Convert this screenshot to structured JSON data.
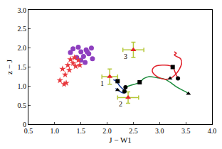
{
  "chart_data": {
    "type": "scatter",
    "x_label": "J − W1",
    "y_label": "z − J",
    "xlim": [
      0.5,
      4.0
    ],
    "ylim": [
      0,
      3.0
    ],
    "xticks": [
      0.5,
      {
        "value": 1,
        "label": "1.0"
      },
      1.5,
      {
        "value": 2,
        "label": "2.0"
      },
      2.5,
      {
        "value": 3,
        "label": "3.0"
      },
      3.5,
      {
        "value": 4,
        "label": "4.0"
      }
    ],
    "yticks": [
      0,
      0.5,
      {
        "value": 1,
        "label": "1.0"
      },
      1.5,
      {
        "value": 2,
        "label": "2.0"
      },
      2.5,
      {
        "value": 3,
        "label": "3.0"
      }
    ],
    "grid": false,
    "series": [
      {
        "type": "scatter",
        "marker": "circle",
        "color": "#8e3fbf",
        "x": [
          1.3,
          1.35,
          1.45,
          1.5,
          1.55,
          1.6,
          1.65,
          1.7,
          1.72,
          1.5,
          1.42,
          1.58,
          1.62
        ],
        "values": [
          1.88,
          1.98,
          2.02,
          1.9,
          1.78,
          1.95,
          1.85,
          2.0,
          1.72,
          1.68,
          1.75,
          1.62,
          1.9
        ]
      },
      {
        "type": "scatter",
        "marker": "star",
        "color": "#e8383d",
        "x": [
          1.1,
          1.15,
          1.18,
          1.2,
          1.25,
          1.28,
          1.3,
          1.35,
          1.38,
          1.4,
          1.45,
          1.48,
          1.22
        ],
        "values": [
          1.15,
          1.45,
          1.05,
          1.3,
          1.55,
          1.42,
          1.7,
          1.6,
          1.75,
          1.52,
          1.68,
          1.55,
          1.08
        ]
      },
      {
        "type": "scatter",
        "marker": "triangle",
        "color": "#e8202a",
        "error_color": "#b5c83a",
        "x": [
          2.05,
          2.4,
          2.5
        ],
        "values": [
          1.25,
          0.7,
          1.95
        ],
        "x_error": [
          0.15,
          0.2,
          0.2
        ],
        "y_error": [
          0.2,
          0.15,
          0.2
        ],
        "labels": [
          "1",
          "2",
          "3"
        ]
      },
      {
        "type": "line",
        "color": "#1f3f9f",
        "x": [
          2.12,
          2.18,
          2.22,
          2.27,
          2.32,
          2.36,
          2.3,
          2.22,
          2.16
        ],
        "values": [
          1.17,
          1.12,
          1.04,
          0.96,
          0.9,
          0.85,
          0.82,
          0.88,
          0.94
        ],
        "points": [
          {
            "x": 2.2,
            "y": 1.13,
            "marker": "square"
          },
          {
            "x": 2.33,
            "y": 0.86,
            "marker": "circle"
          },
          {
            "x": 2.2,
            "y": 0.9,
            "marker": "triangle"
          }
        ]
      },
      {
        "type": "line",
        "color": "#1a8a3a",
        "x": [
          2.35,
          2.45,
          2.55,
          2.62,
          2.7,
          2.8,
          2.95,
          3.1,
          3.2,
          3.3,
          3.4,
          3.5,
          3.55
        ],
        "values": [
          0.97,
          1.02,
          1.06,
          1.1,
          1.2,
          1.25,
          1.22,
          1.18,
          1.1,
          1.0,
          0.92,
          0.85,
          0.8
        ],
        "points": [
          {
            "x": 2.35,
            "y": 0.97,
            "marker": "circle"
          },
          {
            "x": 2.62,
            "y": 1.1,
            "marker": "square"
          },
          {
            "x": 3.55,
            "y": 0.8,
            "marker": "triangle"
          }
        ]
      },
      {
        "type": "line",
        "color": "#e0202a",
        "x": [
          3.35,
          3.3,
          3.25,
          3.1,
          2.92,
          2.86,
          2.95,
          3.1,
          3.2,
          3.3,
          3.38,
          3.42,
          3.4,
          3.32,
          3.28,
          3.32,
          3.28
        ],
        "values": [
          1.2,
          1.35,
          1.5,
          1.55,
          1.52,
          1.4,
          1.25,
          1.18,
          1.2,
          1.3,
          1.45,
          1.6,
          1.72,
          1.78,
          1.82,
          1.86,
          1.9
        ],
        "points": [
          {
            "x": 3.25,
            "y": 1.5,
            "marker": "square"
          },
          {
            "x": 3.35,
            "y": 1.2,
            "marker": "circle"
          },
          {
            "x": 3.2,
            "y": 1.2,
            "marker": "triangle"
          }
        ]
      }
    ]
  }
}
